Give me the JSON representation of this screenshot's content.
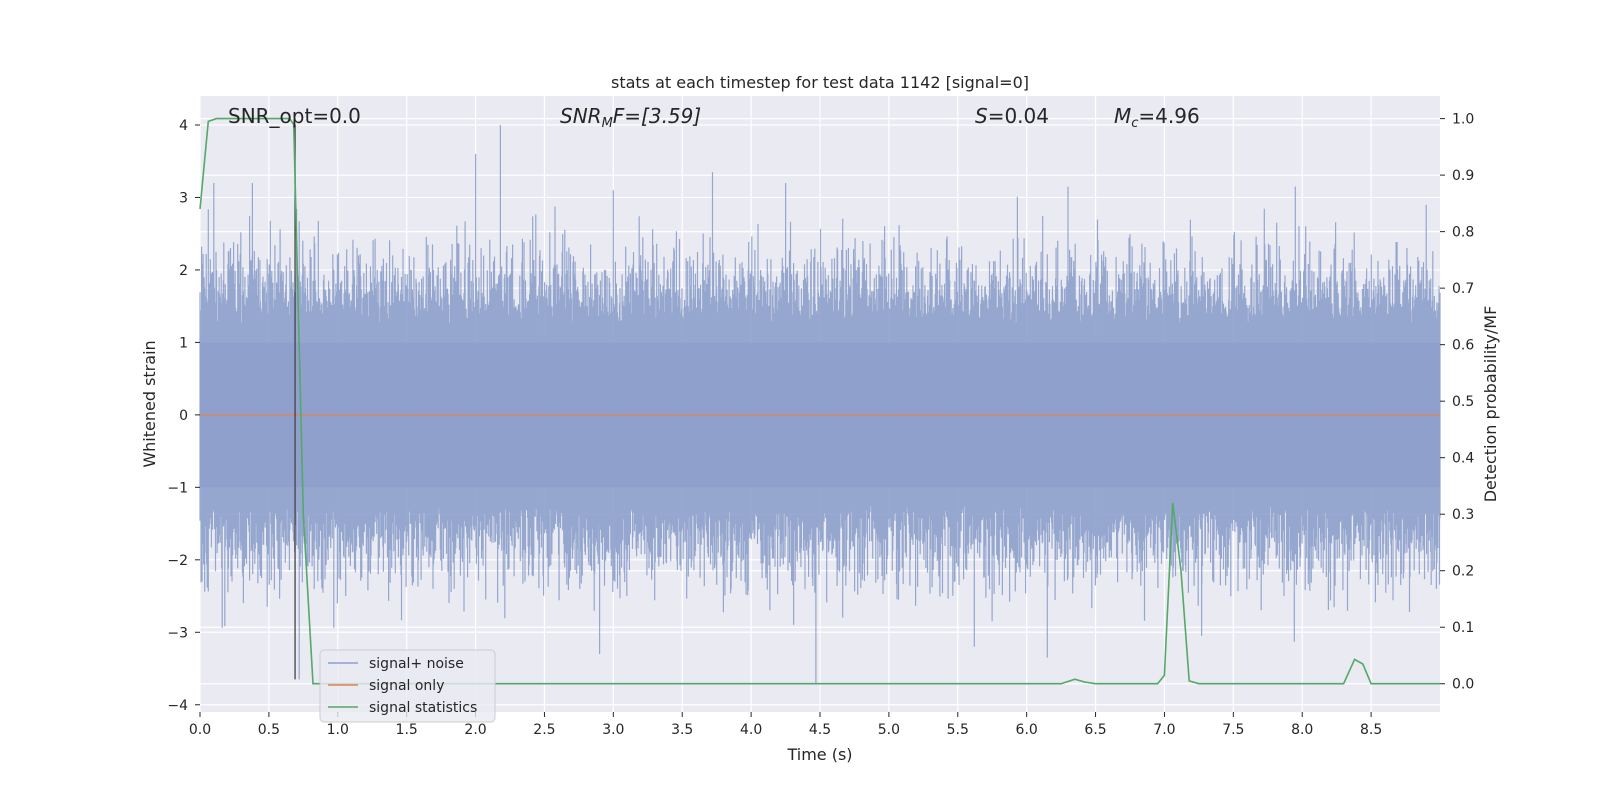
{
  "chart_data": {
    "type": "line",
    "title": "stats at each timestep for test data 1142 [signal=0]",
    "xlabel": "Time (s)",
    "ylabel": "Whitened strain",
    "y2label": "Detection probability/MF",
    "xlim": [
      0.0,
      9.0
    ],
    "ylim": [
      -4.1,
      4.4
    ],
    "y2lim": [
      -0.05,
      1.04
    ],
    "xticks": [
      "0.0",
      "0.5",
      "1.0",
      "1.5",
      "2.0",
      "2.5",
      "3.0",
      "3.5",
      "4.0",
      "4.5",
      "5.0",
      "5.5",
      "6.0",
      "6.5",
      "7.0",
      "7.5",
      "8.0",
      "8.5"
    ],
    "yticks": [
      "4",
      "3",
      "2",
      "1",
      "0",
      "−1",
      "−2",
      "−3",
      "−4"
    ],
    "y2ticks": [
      "1.0",
      "0.9",
      "0.8",
      "0.7",
      "0.6",
      "0.5",
      "0.4",
      "0.3",
      "0.2",
      "0.1",
      "0.0"
    ],
    "grid": true,
    "legend_position": "lower-left",
    "annotations": {
      "snr_opt": "SNR_opt=0.0",
      "snr_mf": {
        "main": "SNR",
        "sub": "M",
        "rest": "F=[3.59]"
      },
      "s": {
        "main": "S",
        "rest": "=0.04"
      },
      "mc": {
        "main": "M",
        "sub": "c",
        "rest": "=4.96"
      }
    },
    "series": [
      {
        "name": "signal+ noise",
        "color": "#8da0cb",
        "kind": "noise",
        "y_range": [
          -3.7,
          4.0
        ],
        "notable_peaks": [
          [
            0.1,
            3.2
          ],
          [
            0.38,
            3.2
          ],
          [
            2.0,
            3.6
          ],
          [
            2.18,
            4.0
          ],
          [
            3.0,
            3.1
          ],
          [
            3.72,
            3.35
          ],
          [
            4.25,
            3.2
          ],
          [
            6.3,
            3.15
          ],
          [
            7.95,
            3.15
          ],
          [
            8.9,
            2.9
          ]
        ],
        "notable_troughs": [
          [
            0.72,
            -3.65
          ],
          [
            2.9,
            -3.3
          ],
          [
            4.47,
            -3.7
          ],
          [
            5.62,
            -3.2
          ],
          [
            6.15,
            -3.35
          ],
          [
            7.27,
            -3.05
          ]
        ]
      },
      {
        "name": "signal only",
        "color": "#dd8452",
        "kind": "flat",
        "value": 0.0
      },
      {
        "name": "signal statistics",
        "color": "#55a868",
        "axis": "right",
        "x": [
          0.0,
          0.06,
          0.12,
          0.65,
          0.68,
          0.71,
          0.75,
          0.82,
          6.25,
          6.35,
          6.42,
          6.5,
          6.95,
          7.0,
          7.06,
          7.12,
          7.18,
          7.25,
          8.3,
          8.38,
          8.44,
          8.5,
          9.0
        ],
        "y": [
          0.84,
          0.995,
          1.0,
          1.0,
          0.99,
          0.7,
          0.3,
          0.0,
          0.0,
          0.008,
          0.003,
          0.0,
          0.0,
          0.015,
          0.32,
          0.2,
          0.005,
          0.0,
          0.0,
          0.043,
          0.035,
          0.0,
          0.0
        ]
      }
    ],
    "vertical_marker_x": 0.69,
    "vertical_marker_color": "#444444"
  }
}
